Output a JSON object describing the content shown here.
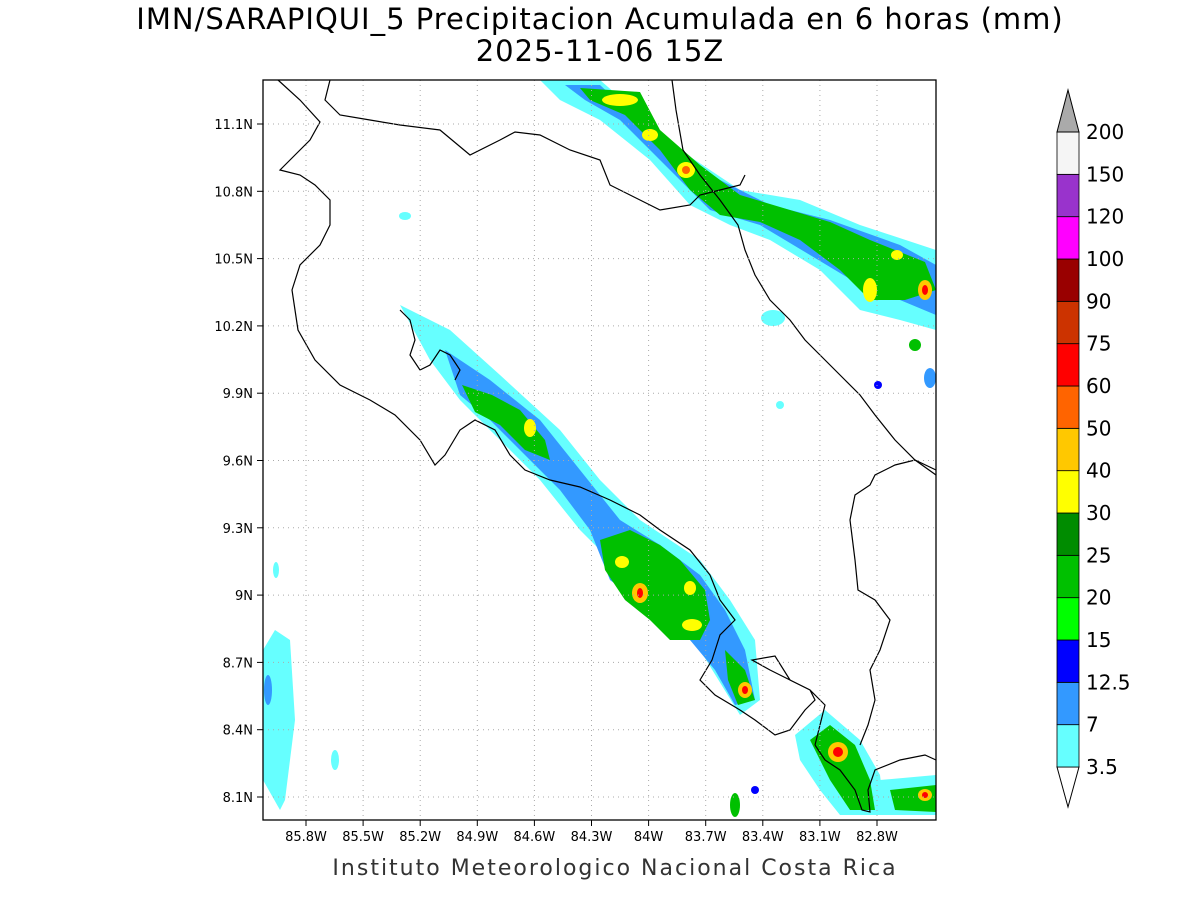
{
  "title": {
    "line1": "IMN/SARAPIQUI_5 Precipitacion Acumulada en 6 horas (mm)",
    "line2": "2025-11-06 15Z"
  },
  "footer": "Instituto Meteorologico Nacional Costa Rica",
  "map": {
    "lon_range": [
      -86.0,
      -83.0
    ],
    "lat_range": [
      8.0,
      11.3
    ],
    "lon_ticks": [
      "85.8W",
      "85.5W",
      "85.2W",
      "84.9W",
      "84.6W",
      "84.3W",
      "84W",
      "83.7W",
      "83.4W",
      "83.1W",
      "82.8W"
    ],
    "lat_ticks": [
      "11.1N",
      "10.8N",
      "10.5N",
      "10.2N",
      "9.9N",
      "9.6N",
      "9.3N",
      "9N",
      "8.7N",
      "8.4N",
      "8.1N"
    ],
    "grid": true,
    "grid_style": "dotted"
  },
  "colorbar": {
    "labels": [
      "3.5",
      "7",
      "12.5",
      "15",
      "20",
      "25",
      "30",
      "40",
      "50",
      "60",
      "75",
      "90",
      "100",
      "120",
      "150",
      "200"
    ],
    "colors": [
      "#66ffff",
      "#3399ff",
      "#0000ff",
      "#00ff00",
      "#00c000",
      "#008c00",
      "#ffff00",
      "#ffc800",
      "#ff6400",
      "#ff0000",
      "#cc3300",
      "#990000",
      "#ff00ff",
      "#9933cc",
      "#f5f5f5",
      "#aaaaaa"
    ]
  }
}
